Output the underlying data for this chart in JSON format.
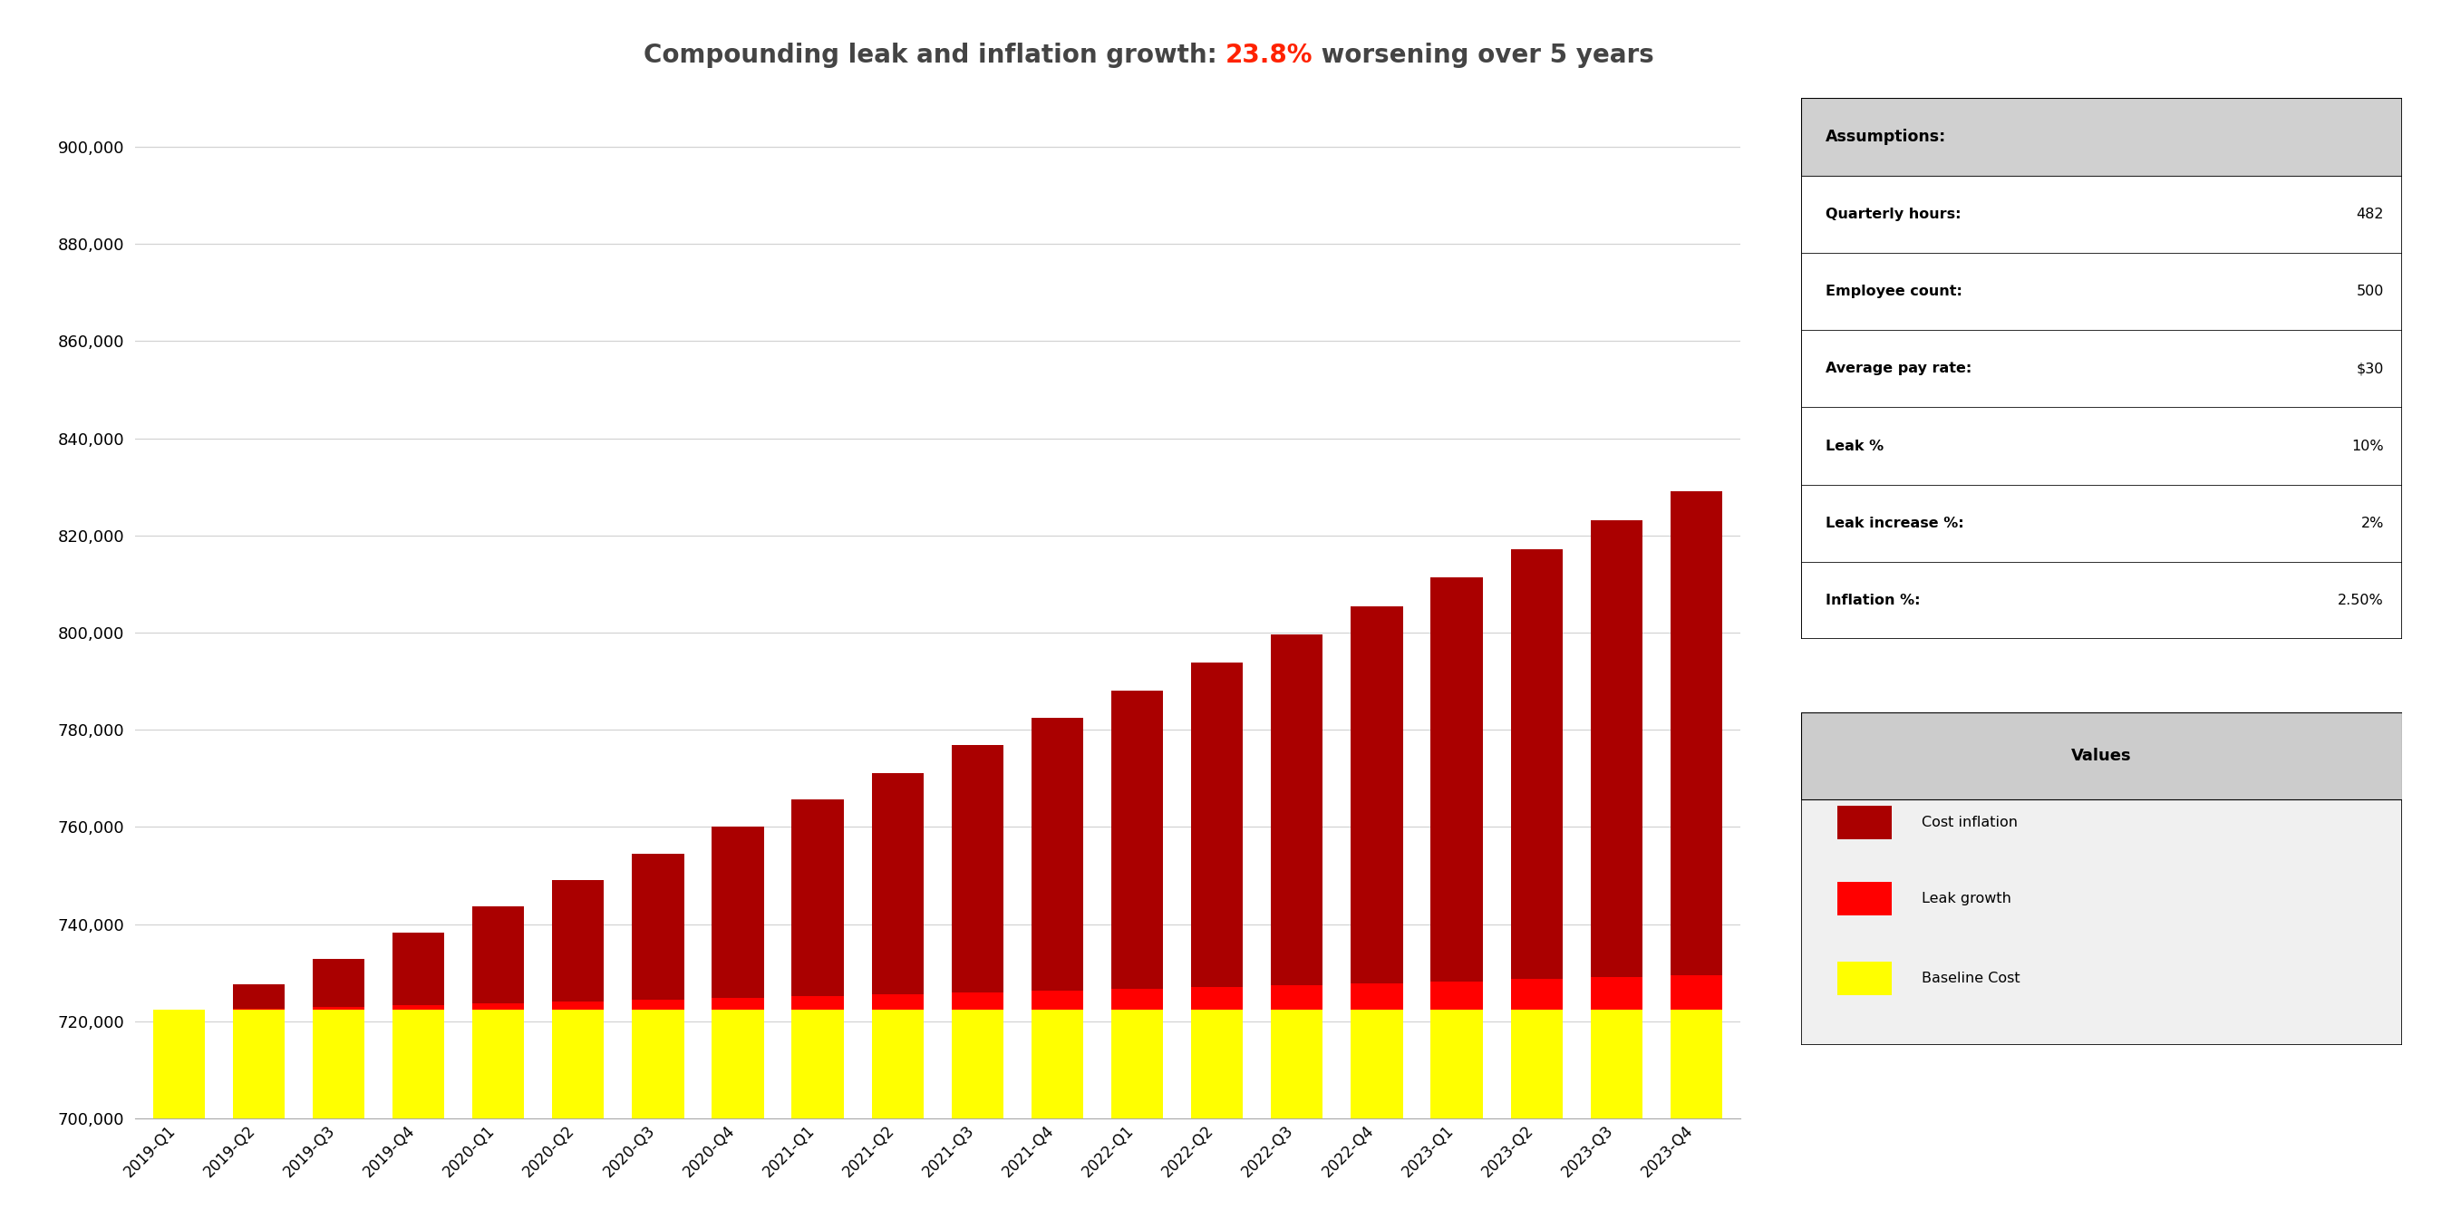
{
  "quarters": [
    "2019-Q1",
    "2019-Q2",
    "2019-Q3",
    "2019-Q4",
    "2020-Q1",
    "2020-Q2",
    "2020-Q3",
    "2020-Q4",
    "2021-Q1",
    "2021-Q2",
    "2021-Q3",
    "2021-Q4",
    "2022-Q1",
    "2022-Q2",
    "2022-Q3",
    "2022-Q4",
    "2023-Q1",
    "2023-Q2",
    "2023-Q3",
    "2023-Q4"
  ],
  "baseline_cost": 722300,
  "leak_pct_initial": 0.1,
  "leak_annual_growth": 0.02,
  "inflation_annual": 0.025,
  "title_prefix": "Compounding leak and inflation growth: ",
  "title_highlight": "23.8%",
  "title_suffix": " worsening over 5 years",
  "title_color": "#444444",
  "highlight_color": "#FF2200",
  "title_fontsize": 20,
  "col_baseline": "#FFFF00",
  "col_leak": "#FF0000",
  "col_inflation": "#AA0000",
  "ylim_min": 700000,
  "ylim_max": 910000,
  "ytick_step": 20000,
  "grid_color": "#D3D3D3",
  "bg_color": "#FFFFFF",
  "assumptions_header": "Assumptions:",
  "assumptions": [
    [
      "Quarterly hours:",
      "482"
    ],
    [
      "Employee count:",
      "500"
    ],
    [
      "Average pay rate:",
      "$30"
    ],
    [
      "Leak %",
      "10%"
    ],
    [
      "Leak increase %:",
      "2%"
    ],
    [
      "Inflation %:",
      "2.50%"
    ]
  ],
  "legend_title": "Values",
  "legend_items": [
    "Cost inflation",
    "Leak growth",
    "Baseline Cost"
  ],
  "legend_colors": [
    "#AA0000",
    "#FF0000",
    "#FFFF00"
  ],
  "bar_width": 0.65
}
